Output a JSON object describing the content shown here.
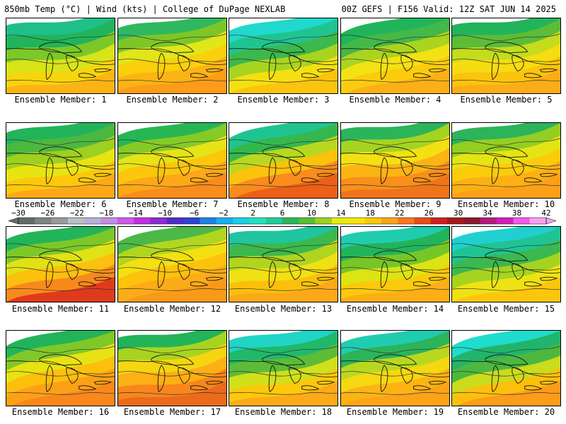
{
  "header": {
    "left_title": "850mb Temp (°C) | Wind (kts) | College of DuPage NEXLAB",
    "right_title": "00Z GEFS | F156 Valid: 12Z SAT JUN 14 2025"
  },
  "colorbar": {
    "labels": [
      "−30",
      "−26",
      "−22",
      "−18",
      "−14",
      "−10",
      "−6",
      "−2",
      "2",
      "6",
      "10",
      "14",
      "18",
      "22",
      "26",
      "30",
      "34",
      "38",
      "42"
    ],
    "colors": [
      "#5e6e66",
      "#7b867f",
      "#9a9a9a",
      "#b8c1c6",
      "#b7b0da",
      "#c48de2",
      "#d05ae6",
      "#c030e0",
      "#8c2bd6",
      "#4f2dc8",
      "#2b45d2",
      "#1f7fe6",
      "#15b0ee",
      "#1cd0e2",
      "#26e0c4",
      "#20cc96",
      "#2cb45a",
      "#58c030",
      "#9ed020",
      "#e6ec10",
      "#f8e40c",
      "#fcc80c",
      "#fca418",
      "#f8781c",
      "#e84c1c",
      "#d02020",
      "#a81818",
      "#8c1830",
      "#b41c7c",
      "#d81cb8",
      "#f05ae6",
      "#f8a0f0"
    ]
  },
  "members": [
    {
      "label": "Ensemble Member: 1"
    },
    {
      "label": "Ensemble Member: 2"
    },
    {
      "label": "Ensemble Member: 3"
    },
    {
      "label": "Ensemble Member: 4"
    },
    {
      "label": "Ensemble Member: 5"
    },
    {
      "label": "Ensemble Member: 6"
    },
    {
      "label": "Ensemble Member: 7"
    },
    {
      "label": "Ensemble Member: 8"
    },
    {
      "label": "Ensemble Member: 9"
    },
    {
      "label": "Ensemble Member: 10"
    },
    {
      "label": "Ensemble Member: 11"
    },
    {
      "label": "Ensemble Member: 12"
    },
    {
      "label": "Ensemble Member: 13"
    },
    {
      "label": "Ensemble Member: 14"
    },
    {
      "label": "Ensemble Member: 15"
    },
    {
      "label": "Ensemble Member: 16"
    },
    {
      "label": "Ensemble Member: 17"
    },
    {
      "label": "Ensemble Member: 18"
    },
    {
      "label": "Ensemble Member: 19"
    },
    {
      "label": "Ensemble Member: 20"
    }
  ]
}
